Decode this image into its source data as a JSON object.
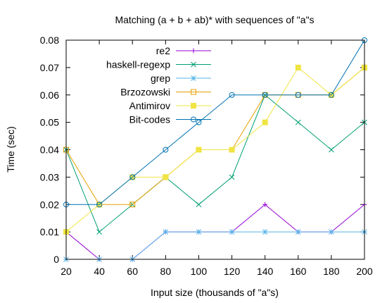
{
  "chart_data": {
    "type": "line",
    "title": "Matching (a + b + ab)* with sequences of \"a\"s",
    "xlabel": "Input size (thousands of \"a\"s)",
    "ylabel": "Time (sec)",
    "xlim": [
      20,
      200
    ],
    "ylim": [
      0,
      0.08
    ],
    "x": [
      20,
      40,
      60,
      80,
      100,
      120,
      140,
      160,
      180,
      200
    ],
    "xticks": [
      "20",
      "40",
      "60",
      "80",
      "100",
      "120",
      "140",
      "160",
      "180",
      "200"
    ],
    "yticks_values": [
      0,
      0.01,
      0.02,
      0.03,
      0.04,
      0.05,
      0.06,
      0.07,
      0.08
    ],
    "yticks": [
      "0",
      "0.01",
      "0.02",
      "0.03",
      "0.04",
      "0.05",
      "0.06",
      "0.07",
      "0.08"
    ],
    "grid": false,
    "legend_position": "top-left",
    "series": [
      {
        "name": "re2",
        "color": "#9400d3",
        "marker": "plus",
        "values": [
          0.01,
          0,
          0,
          0.01,
          0.01,
          0.01,
          0.02,
          0.01,
          0.01,
          0.02
        ]
      },
      {
        "name": "haskell-regexp",
        "color": "#009e73",
        "marker": "cross",
        "values": [
          0.04,
          0.01,
          0.02,
          0.03,
          0.02,
          0.03,
          0.06,
          0.05,
          0.04,
          0.05
        ]
      },
      {
        "name": "grep",
        "color": "#56b4e9",
        "marker": "star",
        "values": [
          0,
          0,
          0,
          0.01,
          0.01,
          0.01,
          0.01,
          0.01,
          0.01,
          0.01
        ]
      },
      {
        "name": "Brzozowski",
        "color": "#e69f00",
        "marker": "open-square",
        "values": [
          0.04,
          0.02,
          0.02,
          0.03,
          0.04,
          0.04,
          0.06,
          0.06,
          0.06,
          0.07
        ]
      },
      {
        "name": "Antimirov",
        "color": "#f0e442",
        "marker": "filled-square",
        "values": [
          0.01,
          0.02,
          0.03,
          0.03,
          0.04,
          0.04,
          0.05,
          0.07,
          0.06,
          0.07
        ]
      },
      {
        "name": "Bit-codes",
        "color": "#0072b2",
        "marker": "open-circle",
        "values": [
          0.02,
          0.02,
          0.03,
          0.04,
          0.05,
          0.06,
          0.06,
          0.06,
          0.06,
          0.08
        ]
      }
    ]
  }
}
